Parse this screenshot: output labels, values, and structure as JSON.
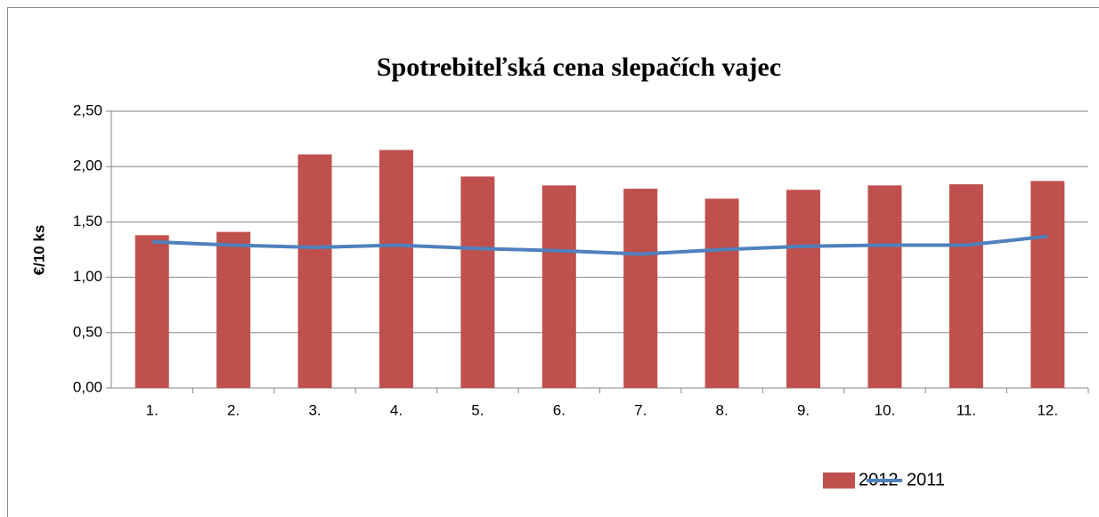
{
  "chart_data": {
    "type": "bar",
    "title": "Spotrebiteľská cena slepačích vajec",
    "y_label": "€/10 ks",
    "categories": [
      "1.",
      "2.",
      "3.",
      "4.",
      "5.",
      "6.",
      "7.",
      "8.",
      "9.",
      "10.",
      "11.",
      "12."
    ],
    "series": [
      {
        "name": "2012",
        "type": "bar",
        "color": "#c0504d",
        "values": [
          1.38,
          1.41,
          2.11,
          2.15,
          1.91,
          1.83,
          1.8,
          1.71,
          1.79,
          1.83,
          1.84,
          1.87
        ]
      },
      {
        "name": "2011",
        "type": "line",
        "color": "#4f81bd",
        "values": [
          1.32,
          1.29,
          1.27,
          1.29,
          1.26,
          1.24,
          1.21,
          1.25,
          1.28,
          1.29,
          1.29,
          1.37
        ]
      }
    ],
    "ylim": [
      0,
      2.5
    ],
    "yticks": [
      {
        "value": 0,
        "label": "0,00"
      },
      {
        "value": 0.5,
        "label": "0,50"
      },
      {
        "value": 1,
        "label": "1,00"
      },
      {
        "value": 1.5,
        "label": "1,50"
      },
      {
        "value": 2,
        "label": "2,00"
      },
      {
        "value": 2.5,
        "label": "2,50"
      }
    ],
    "grid": true,
    "legend": "bottom"
  }
}
